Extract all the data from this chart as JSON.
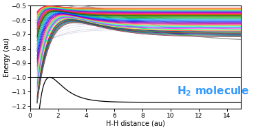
{
  "xlim": [
    0,
    15
  ],
  "ylim": [
    -1.22,
    -0.5
  ],
  "xlabel": "H-H distance (au)",
  "ylabel": "Energy (au)",
  "xticks": [
    0,
    2,
    4,
    6,
    8,
    10,
    12,
    14
  ],
  "yticks": [
    -1.2,
    -1.1,
    -1.0,
    -0.9,
    -0.8,
    -0.7,
    -0.6,
    -0.5
  ],
  "text_color": "#3399ff",
  "background_color": "#ffffff",
  "ground_state_color": "#000000",
  "dissociation_line_y": -1.0,
  "n_vibrational": 14,
  "figsize": [
    3.72,
    1.89
  ],
  "dpi": 100
}
